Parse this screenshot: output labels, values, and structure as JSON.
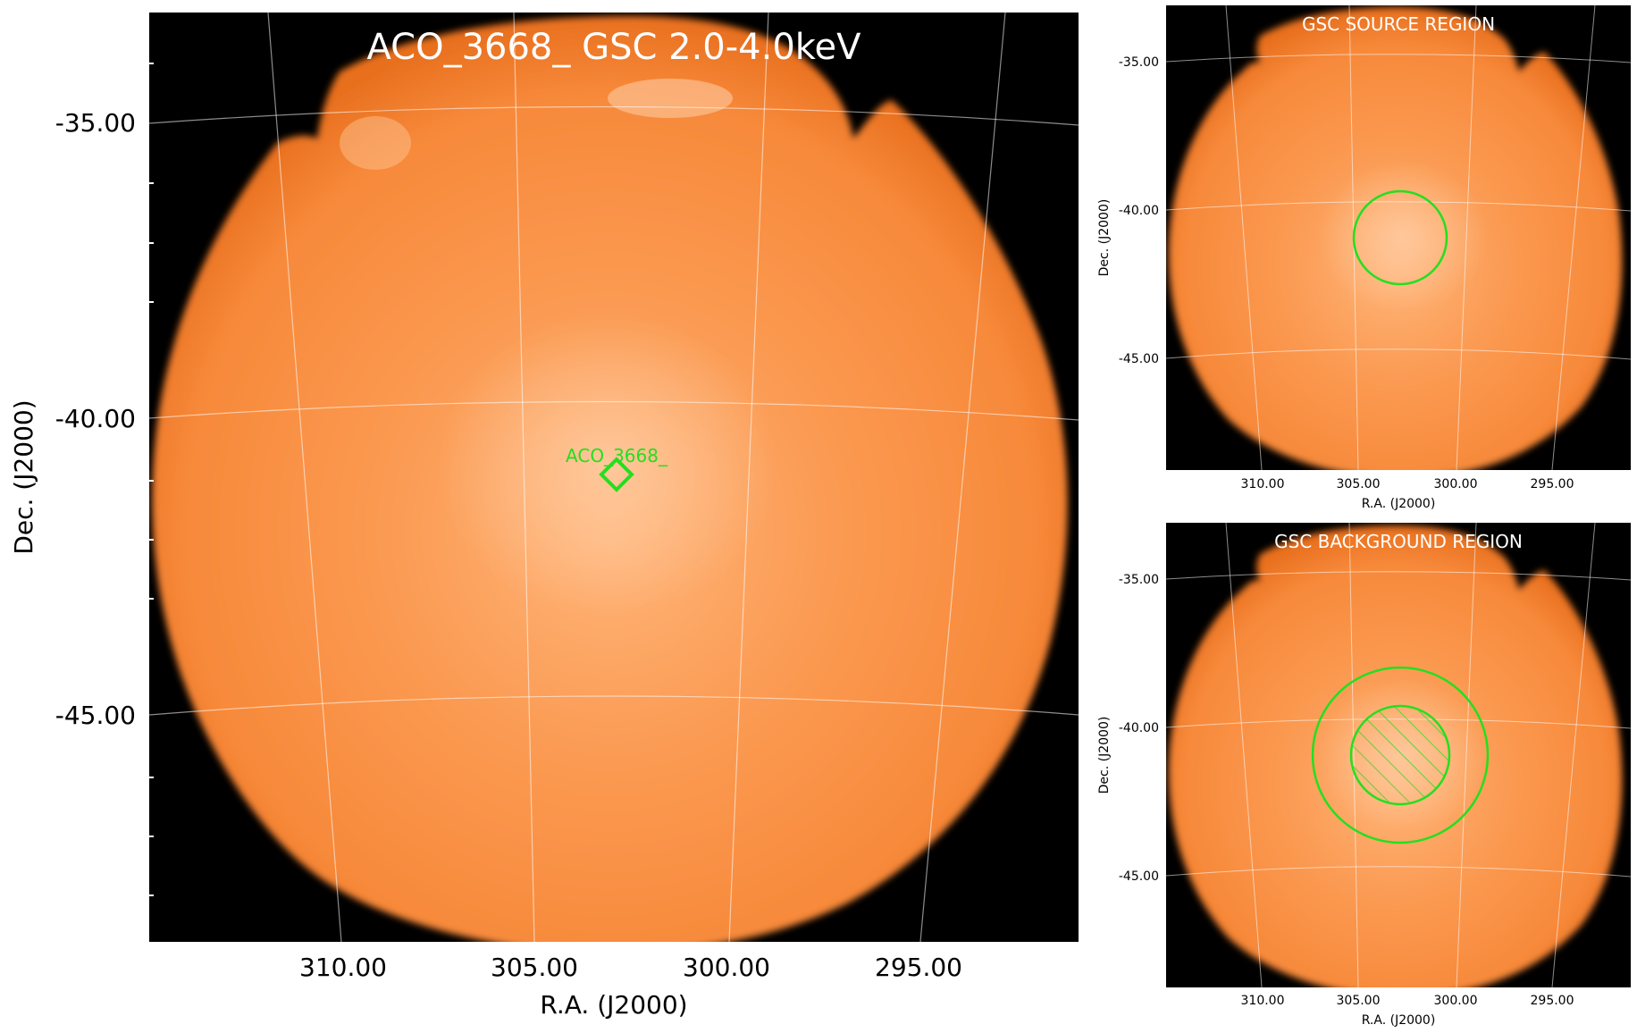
{
  "main_panel": {
    "title": "ACO_3668_ GSC 2.0-4.0keV",
    "xlabel": "R.A. (J2000)",
    "ylabel": "Dec. (J2000)",
    "x_ticks": [
      "310.00",
      "305.00",
      "300.00",
      "295.00"
    ],
    "y_ticks": [
      "-35.00",
      "-40.00",
      "-45.00"
    ],
    "marker_label": "ACO_3668_"
  },
  "source_panel": {
    "title": "GSC SOURCE REGION",
    "xlabel": "R.A. (J2000)",
    "ylabel": "Dec. (J2000)",
    "x_ticks": [
      "310.00",
      "305.00",
      "300.00",
      "295.00"
    ],
    "y_ticks": [
      "-35.00",
      "-40.00",
      "-45.00"
    ]
  },
  "background_panel": {
    "title": "GSC BACKGROUND REGION",
    "xlabel": "R.A. (J2000)",
    "ylabel": "Dec. (J2000)",
    "x_ticks": [
      "310.00",
      "305.00",
      "300.00",
      "295.00"
    ],
    "y_ticks": [
      "-35.00",
      "-40.00",
      "-45.00"
    ]
  },
  "colors": {
    "sky_background": "#000000",
    "emission": "#fa8a3c",
    "region": "#22e01e",
    "grid": "#ffffff"
  }
}
